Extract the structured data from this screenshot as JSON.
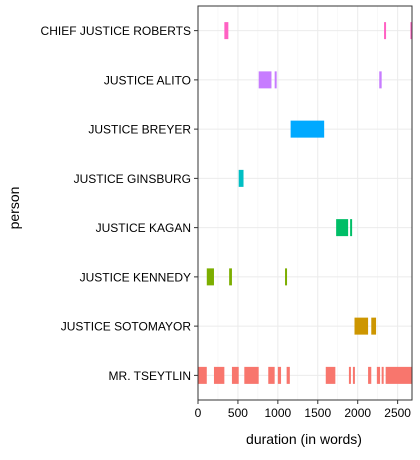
{
  "chart_data": {
    "type": "timeline",
    "xlabel": "duration (in words)",
    "ylabel": "person",
    "xlim": [
      0,
      2680
    ],
    "x_ticks": [
      0,
      500,
      1000,
      1500,
      2000,
      2500
    ],
    "grid": true,
    "legend": "none",
    "categories": [
      "CHIEF JUSTICE ROBERTS",
      "JUSTICE ALITO",
      "JUSTICE BREYER",
      "JUSTICE GINSBURG",
      "JUSTICE KAGAN",
      "JUSTICE KENNEDY",
      "JUSTICE SOTOMAYOR",
      "MR. TSEYTLIN"
    ],
    "series": [
      {
        "person": "CHIEF JUSTICE ROBERTS",
        "color": "#FF61C3",
        "segments": [
          [
            330,
            380
          ],
          [
            2330,
            2345
          ],
          [
            2660,
            2680
          ]
        ]
      },
      {
        "person": "JUSTICE ALITO",
        "color": "#C77CFF",
        "segments": [
          [
            760,
            920
          ],
          [
            960,
            985
          ],
          [
            2270,
            2300
          ]
        ]
      },
      {
        "person": "JUSTICE BREYER",
        "color": "#00A9FF",
        "segments": [
          [
            1160,
            1580
          ]
        ]
      },
      {
        "person": "JUSTICE GINSBURG",
        "color": "#00BFC4",
        "segments": [
          [
            510,
            570
          ]
        ]
      },
      {
        "person": "JUSTICE KAGAN",
        "color": "#00BE67",
        "segments": [
          [
            1730,
            1880
          ],
          [
            1905,
            1930
          ]
        ]
      },
      {
        "person": "JUSTICE KENNEDY",
        "color": "#7CAE00",
        "segments": [
          [
            110,
            200
          ],
          [
            390,
            425
          ],
          [
            1090,
            1115
          ]
        ]
      },
      {
        "person": "JUSTICE SOTOMAYOR",
        "color": "#CD9600",
        "segments": [
          [
            1960,
            2130
          ],
          [
            2170,
            2230
          ]
        ]
      },
      {
        "person": "MR. TSEYTLIN",
        "color": "#F8766D",
        "segments": [
          [
            0,
            110
          ],
          [
            200,
            330
          ],
          [
            425,
            510
          ],
          [
            580,
            760
          ],
          [
            880,
            960
          ],
          [
            1000,
            1040
          ],
          [
            1110,
            1150
          ],
          [
            1600,
            1720
          ],
          [
            1890,
            1910
          ],
          [
            1940,
            1960
          ],
          [
            2130,
            2170
          ],
          [
            2240,
            2280
          ],
          [
            2300,
            2320
          ],
          [
            2350,
            2680
          ]
        ]
      }
    ]
  }
}
